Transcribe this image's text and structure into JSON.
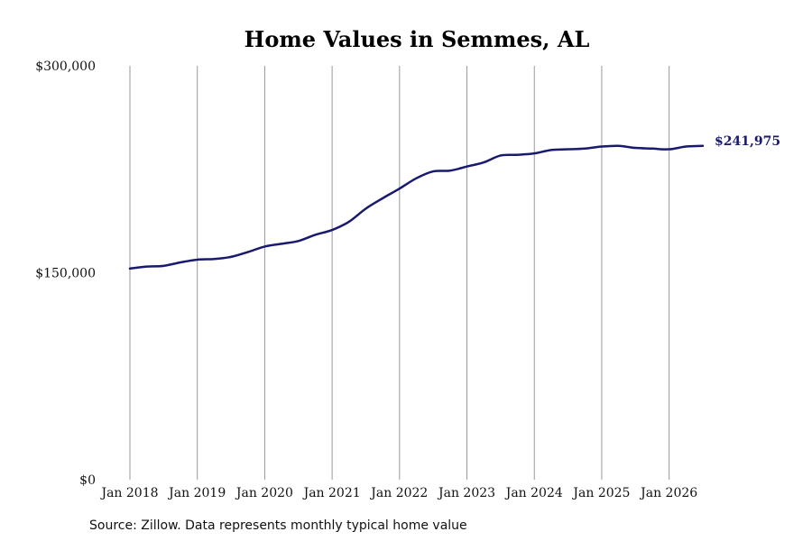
{
  "chart_data": {
    "type": "line",
    "title": "Home Values in Semmes, AL",
    "xlabel": "",
    "ylabel": "",
    "x_ticks": [
      "Jan 2018",
      "Jan 2019",
      "Jan 2020",
      "Jan 2021",
      "Jan 2022",
      "Jan 2023",
      "Jan 2024",
      "Jan 2025",
      "Jan 2026"
    ],
    "y_ticks": [
      "$0",
      "$150,000",
      "$300,000"
    ],
    "y_tick_values": [
      0,
      150000,
      300000
    ],
    "ylim": [
      0,
      300000
    ],
    "xlim": [
      "Jan 2018",
      "Jul 2026"
    ],
    "grid": "vertical",
    "series": [
      {
        "name": "",
        "color": "#191970",
        "x": [
          "Jan 2018",
          "Apr 2018",
          "Jul 2018",
          "Oct 2018",
          "Jan 2019",
          "Apr 2019",
          "Jul 2019",
          "Oct 2019",
          "Jan 2020",
          "Apr 2020",
          "Jul 2020",
          "Oct 2020",
          "Jan 2021",
          "Apr 2021",
          "Jul 2021",
          "Oct 2021",
          "Jan 2022",
          "Apr 2022",
          "Jul 2022",
          "Oct 2022",
          "Jan 2023",
          "Apr 2023",
          "Jul 2023",
          "Oct 2023",
          "Jan 2024",
          "Apr 2024",
          "Jul 2024",
          "Oct 2024",
          "Jan 2025",
          "Apr 2025",
          "Jul 2025",
          "Oct 2025",
          "Jan 2026",
          "Apr 2026",
          "Jul 2026"
        ],
        "values": [
          153000,
          154500,
          155000,
          157500,
          159500,
          160000,
          161500,
          165000,
          169000,
          171000,
          173000,
          177500,
          181000,
          187000,
          196500,
          204000,
          211000,
          218500,
          223500,
          224000,
          227000,
          230000,
          235000,
          235500,
          236500,
          239000,
          239500,
          240000,
          241500,
          242000,
          240500,
          240000,
          239500,
          241500,
          241975
        ]
      }
    ],
    "end_label": "$241,975",
    "source": "Source: Zillow. Data represents monthly typical home value"
  }
}
